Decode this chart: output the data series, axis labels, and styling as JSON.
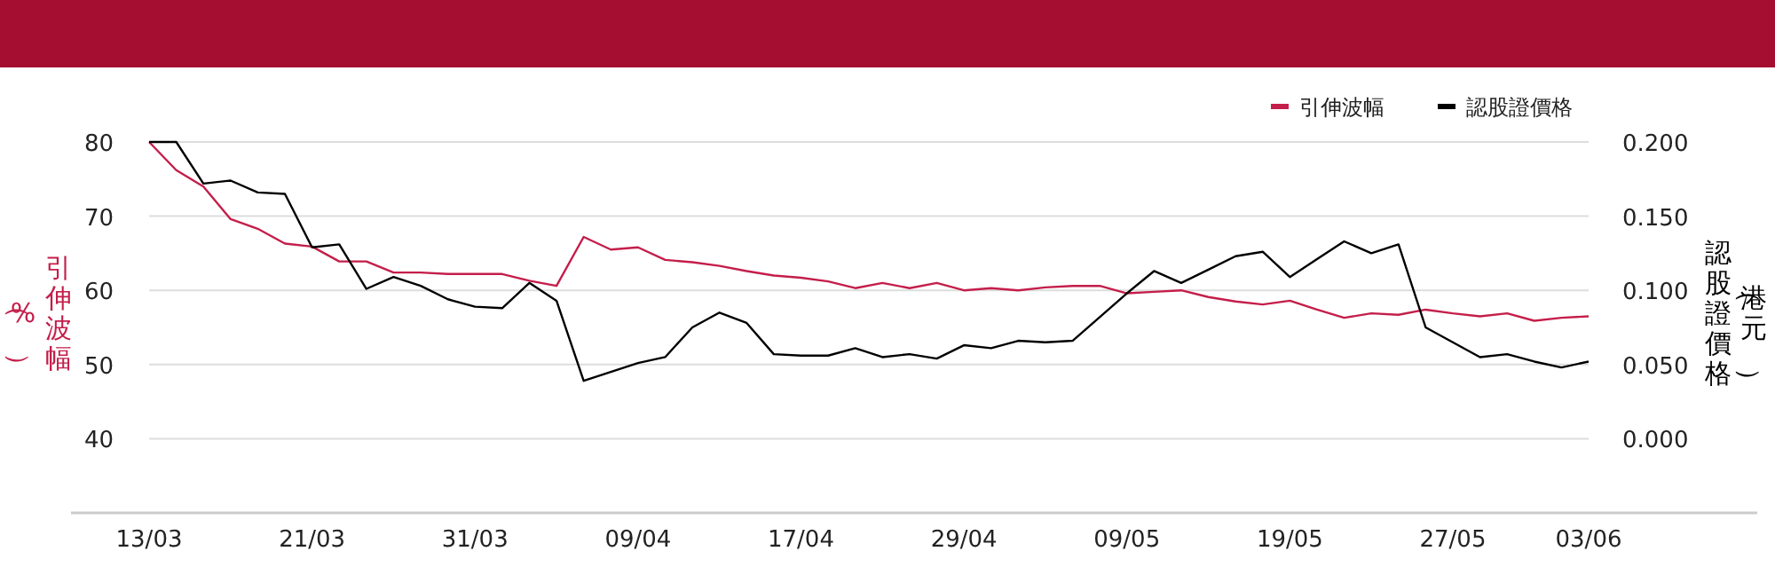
{
  "chart_data": {
    "type": "line",
    "categories": [
      "13/03",
      null,
      null,
      null,
      null,
      null,
      "21/03",
      null,
      null,
      null,
      null,
      null,
      "31/03",
      null,
      null,
      null,
      null,
      null,
      "09/04",
      null,
      null,
      null,
      null,
      null,
      "17/04",
      null,
      null,
      null,
      null,
      null,
      "29/04",
      null,
      null,
      null,
      null,
      null,
      "09/05",
      null,
      null,
      null,
      null,
      null,
      "19/05",
      null,
      null,
      null,
      null,
      null,
      "27/05",
      null,
      null,
      null,
      null,
      "03/06"
    ],
    "ylabel": "引伸波幅（%）",
    "y2label": "認股證價格（港元）",
    "ylim": [
      30,
      80
    ],
    "yticks": [
      40,
      50,
      60,
      70,
      80
    ],
    "y2lim": [
      -0.05,
      0.2
    ],
    "y2ticks": [
      {
        "value": 0,
        "label": "0.000"
      },
      {
        "value": 0.05,
        "label": "0.050"
      },
      {
        "value": 0.1,
        "label": "0.100"
      },
      {
        "value": 0.15,
        "label": "0.150"
      },
      {
        "value": 0.2,
        "label": "0.200"
      }
    ],
    "grid": "y",
    "legend": "top right",
    "series": [
      {
        "name": "引伸波幅",
        "color": "#c41e4a",
        "values": [
          80,
          76.2,
          74.0,
          69.6,
          68.3,
          66.3,
          65.9,
          63.9,
          63.9,
          62.4,
          62.4,
          62.2,
          62.2,
          62.2,
          61.3,
          60.6,
          67.2,
          65.5,
          65.8,
          64.1,
          63.8,
          63.3,
          62.6,
          62.0,
          61.7,
          61.2,
          60.3,
          61.0,
          60.3,
          61.0,
          60.0,
          60.3,
          60.0,
          60.4,
          60.6,
          60.6,
          59.6,
          59.8,
          60.0,
          59.1,
          58.5,
          58.1,
          58.6,
          57.4,
          56.3,
          56.9,
          56.7,
          57.4,
          56.9,
          56.5,
          56.9,
          55.9,
          56.3,
          56.5
        ]
      },
      {
        "name": "認股證價格",
        "color": "#000000",
        "axis": "y2",
        "values": [
          0.2,
          0.2,
          0.172,
          0.174,
          0.166,
          0.165,
          0.129,
          0.131,
          0.101,
          0.109,
          0.103,
          0.094,
          0.089,
          0.088,
          0.105,
          0.093,
          0.039,
          0.045,
          0.051,
          0.055,
          0.075,
          0.085,
          0.078,
          0.057,
          0.056,
          0.056,
          0.061,
          0.055,
          0.057,
          0.054,
          0.063,
          0.061,
          0.066,
          0.065,
          0.066,
          0.082,
          0.098,
          0.113,
          0.105,
          0.114,
          0.123,
          0.126,
          0.109,
          0.121,
          0.133,
          0.125,
          0.131,
          0.075,
          0.065,
          0.055,
          0.057,
          0.052,
          0.048,
          0.052
        ]
      }
    ]
  }
}
